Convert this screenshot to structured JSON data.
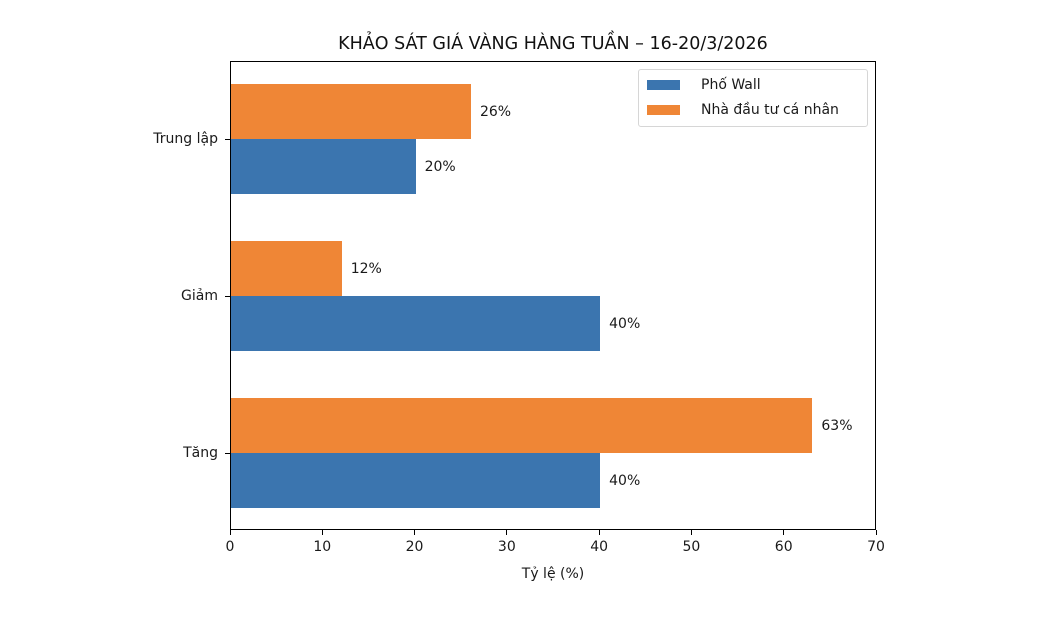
{
  "chart_data": {
    "type": "bar",
    "orientation": "horizontal",
    "title": "KHẢO SÁT GIÁ VÀNG HÀNG TUẦN – 16-20/3/2026",
    "xlabel": "Tỷ lệ (%)",
    "ylabel": "",
    "categories": [
      "Tăng",
      "Giảm",
      "Trung lập"
    ],
    "series": [
      {
        "name": "Phố Wall",
        "color": "#3b75af",
        "values": [
          40,
          40,
          20
        ],
        "labels": [
          "40%",
          "40%",
          "20%"
        ]
      },
      {
        "name": "Nhà đầu tư cá nhân",
        "color": "#ef8636",
        "values": [
          63,
          12,
          26
        ],
        "labels": [
          "63%",
          "12%",
          "26%"
        ]
      }
    ],
    "xlim": [
      0,
      70
    ],
    "xticks": [
      "0",
      "10",
      "20",
      "30",
      "40",
      "50",
      "60",
      "70"
    ],
    "grid": false,
    "legend_position": "upper right"
  },
  "legend": {
    "items": [
      {
        "label": "Phố Wall",
        "color": "#3b75af"
      },
      {
        "label": "Nhà đầu tư cá nhân",
        "color": "#ef8636"
      }
    ]
  }
}
